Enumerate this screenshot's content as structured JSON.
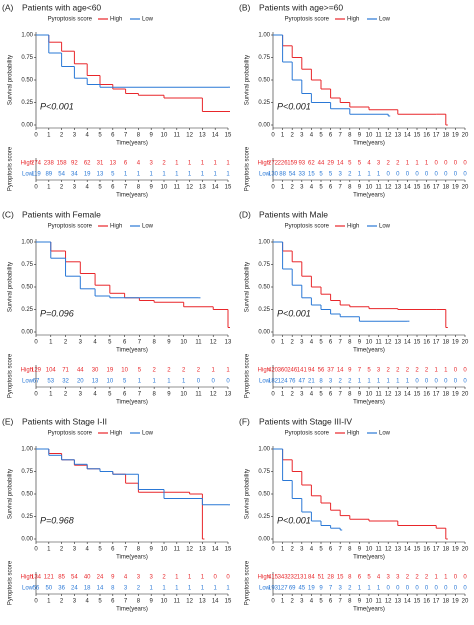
{
  "chart_data": [
    {
      "type": "line",
      "panel_label": "(A)",
      "title": "Patients with age<60",
      "legend_title": "Pyroptosis score",
      "xlabel": "Time(years)",
      "ylabel": "Survival probability",
      "risk_ylabel": "Pyroptosis score",
      "p_text": "P<0.001",
      "xlim": [
        0,
        15
      ],
      "xticks": [
        0,
        1,
        2,
        3,
        4,
        5,
        6,
        7,
        8,
        9,
        10,
        11,
        12,
        13,
        14,
        15
      ],
      "ylim": [
        0,
        1
      ],
      "yticks": [
        {
          "value": 0,
          "label": "0.00"
        },
        {
          "value": 0.25,
          "label": "0.25"
        },
        {
          "value": 0.5,
          "label": "0.50"
        },
        {
          "value": 0.75,
          "label": "0.75"
        },
        {
          "value": 1,
          "label": "1.00"
        }
      ],
      "series": [
        {
          "name": "High",
          "color": "#e8262a",
          "x": [
            0,
            1,
            2,
            3,
            4,
            5,
            6,
            7,
            8,
            10,
            13,
            15
          ],
          "values": [
            1,
            0.92,
            0.82,
            0.68,
            0.55,
            0.45,
            0.4,
            0.35,
            0.33,
            0.3,
            0.15,
            0.15
          ],
          "at_risk": [
            274,
            238,
            158,
            92,
            62,
            31,
            13,
            6,
            4,
            3,
            2,
            1,
            1,
            1,
            1,
            1
          ]
        },
        {
          "name": "Low",
          "color": "#2a78d6",
          "x": [
            0,
            1,
            2,
            3,
            4,
            5,
            15
          ],
          "values": [
            1,
            0.8,
            0.65,
            0.52,
            0.45,
            0.42,
            0.42
          ],
          "at_risk": [
            119,
            89,
            54,
            34,
            19,
            13,
            5,
            1,
            1,
            1,
            1,
            1,
            1,
            1,
            1,
            1
          ]
        }
      ]
    },
    {
      "type": "line",
      "panel_label": "(B)",
      "title": "Patients with age>=60",
      "legend_title": "Pyroptosis score",
      "xlabel": "Time(years)",
      "ylabel": "Survival probability",
      "risk_ylabel": "Pyroptosis score",
      "p_text": "P<0.001",
      "xlim": [
        0,
        20
      ],
      "xticks": [
        0,
        1,
        2,
        3,
        4,
        5,
        6,
        7,
        8,
        9,
        10,
        11,
        12,
        13,
        14,
        15,
        16,
        17,
        18,
        19,
        20
      ],
      "ylim": [
        0,
        1
      ],
      "yticks": [
        {
          "value": 0,
          "label": "0.00"
        },
        {
          "value": 0.25,
          "label": "0.25"
        },
        {
          "value": 0.5,
          "label": "0.50"
        },
        {
          "value": 0.75,
          "label": "0.75"
        },
        {
          "value": 1,
          "label": "1.00"
        }
      ],
      "series": [
        {
          "name": "High",
          "color": "#e8262a",
          "x": [
            0,
            1,
            2,
            3,
            4,
            5,
            6,
            7,
            8,
            10,
            13,
            17,
            18
          ],
          "values": [
            1,
            0.88,
            0.75,
            0.62,
            0.5,
            0.4,
            0.3,
            0.25,
            0.2,
            0.17,
            0.12,
            0.12,
            0
          ],
          "at_risk": [
            272,
            226,
            159,
            93,
            62,
            44,
            29,
            14,
            5,
            5,
            4,
            3,
            2,
            2,
            1,
            1,
            1,
            0,
            0,
            0,
            0
          ]
        },
        {
          "name": "Low",
          "color": "#2a78d6",
          "x": [
            0,
            1,
            2,
            3,
            4,
            6,
            8,
            12
          ],
          "values": [
            1,
            0.7,
            0.5,
            0.35,
            0.25,
            0.18,
            0.12,
            0.1
          ],
          "at_risk": [
            130,
            88,
            54,
            33,
            15,
            5,
            5,
            3,
            2,
            1,
            1,
            1,
            0,
            0,
            0,
            0,
            0,
            0,
            0,
            0,
            0
          ]
        }
      ]
    },
    {
      "type": "line",
      "panel_label": "(C)",
      "title": "Patients with Female",
      "legend_title": "Pyroptosis score",
      "xlabel": "Time(years)",
      "ylabel": "Survival probability",
      "risk_ylabel": "Pyroptosis score",
      "p_text": "P=0.096",
      "xlim": [
        0,
        13
      ],
      "xticks": [
        0,
        1,
        2,
        3,
        4,
        5,
        6,
        7,
        8,
        9,
        10,
        11,
        12,
        13
      ],
      "ylim": [
        0,
        1
      ],
      "yticks": [
        {
          "value": 0,
          "label": "0.00"
        },
        {
          "value": 0.25,
          "label": "0.25"
        },
        {
          "value": 0.5,
          "label": "0.50"
        },
        {
          "value": 0.75,
          "label": "0.75"
        },
        {
          "value": 1,
          "label": "1.00"
        }
      ],
      "series": [
        {
          "name": "High",
          "color": "#e8262a",
          "x": [
            0,
            1,
            2,
            3,
            4,
            5,
            6,
            7,
            8,
            10,
            12,
            13
          ],
          "values": [
            1,
            0.9,
            0.78,
            0.65,
            0.52,
            0.43,
            0.38,
            0.35,
            0.33,
            0.28,
            0.25,
            0.05
          ],
          "at_risk": [
            129,
            104,
            71,
            44,
            30,
            19,
            10,
            5,
            2,
            2,
            2,
            2,
            1,
            1
          ]
        },
        {
          "name": "Low",
          "color": "#2a78d6",
          "x": [
            0,
            1,
            2,
            3,
            4,
            5,
            11
          ],
          "values": [
            1,
            0.82,
            0.62,
            0.48,
            0.4,
            0.38,
            0.38
          ],
          "at_risk": [
            67,
            53,
            32,
            20,
            13,
            10,
            5,
            1,
            1,
            1,
            1,
            0,
            0,
            0
          ]
        }
      ]
    },
    {
      "type": "line",
      "panel_label": "(D)",
      "title": "Patients with Male",
      "legend_title": "Pyroptosis score",
      "xlabel": "Time(years)",
      "ylabel": "Survival probability",
      "risk_ylabel": "Pyroptosis score",
      "p_text": "P<0.001",
      "xlim": [
        0,
        20
      ],
      "xticks": [
        0,
        1,
        2,
        3,
        4,
        5,
        6,
        7,
        8,
        9,
        10,
        11,
        12,
        13,
        14,
        15,
        16,
        17,
        18,
        19,
        20
      ],
      "ylim": [
        0,
        1
      ],
      "yticks": [
        {
          "value": 0,
          "label": "0.00"
        },
        {
          "value": 0.25,
          "label": "0.25"
        },
        {
          "value": 0.5,
          "label": "0.50"
        },
        {
          "value": 0.75,
          "label": "0.75"
        },
        {
          "value": 1,
          "label": "1.00"
        }
      ],
      "series": [
        {
          "name": "High",
          "color": "#e8262a",
          "x": [
            0,
            1,
            2,
            3,
            4,
            5,
            6,
            7,
            8,
            10,
            13,
            17,
            18
          ],
          "values": [
            1,
            0.9,
            0.78,
            0.62,
            0.5,
            0.42,
            0.35,
            0.3,
            0.28,
            0.26,
            0.25,
            0.25,
            0.05
          ],
          "at_risk": [
            420,
            360,
            246,
            141,
            94,
            56,
            37,
            14,
            9,
            7,
            5,
            3,
            2,
            2,
            2,
            2,
            2,
            1,
            1,
            0,
            0
          ]
        },
        {
          "name": "Low",
          "color": "#2a78d6",
          "x": [
            0,
            1,
            2,
            3,
            4,
            5,
            6,
            7,
            9,
            14
          ],
          "values": [
            1,
            0.7,
            0.52,
            0.38,
            0.3,
            0.25,
            0.2,
            0.17,
            0.12,
            0.12
          ],
          "at_risk": [
            182,
            124,
            76,
            47,
            21,
            8,
            3,
            2,
            2,
            1,
            1,
            1,
            1,
            1,
            1,
            0,
            0,
            0,
            0,
            0,
            0
          ]
        }
      ]
    },
    {
      "type": "line",
      "panel_label": "(E)",
      "title": "Patients with Stage I-II",
      "legend_title": "Pyroptosis score",
      "xlabel": "Time(years)",
      "ylabel": "Survival probability",
      "risk_ylabel": "Pyroptosis score",
      "p_text": "P=0.968",
      "xlim": [
        0,
        15
      ],
      "xticks": [
        0,
        1,
        2,
        3,
        4,
        5,
        6,
        7,
        8,
        9,
        10,
        11,
        12,
        13,
        14,
        15
      ],
      "ylim": [
        0,
        1
      ],
      "yticks": [
        {
          "value": 0,
          "label": "0.00"
        },
        {
          "value": 0.25,
          "label": "0.25"
        },
        {
          "value": 0.5,
          "label": "0.50"
        },
        {
          "value": 0.75,
          "label": "0.75"
        },
        {
          "value": 1,
          "label": "1.00"
        }
      ],
      "series": [
        {
          "name": "High",
          "color": "#e8262a",
          "x": [
            0,
            1,
            2,
            3,
            4,
            5,
            6,
            7,
            8,
            12,
            13
          ],
          "values": [
            1,
            0.95,
            0.88,
            0.82,
            0.78,
            0.75,
            0.72,
            0.62,
            0.52,
            0.5,
            0
          ],
          "at_risk": [
            134,
            121,
            85,
            54,
            40,
            24,
            9,
            4,
            3,
            3,
            2,
            1,
            1,
            1,
            0,
            0
          ]
        },
        {
          "name": "Low",
          "color": "#2a78d6",
          "x": [
            0,
            1,
            2,
            3,
            4,
            5,
            6,
            8,
            10,
            13,
            15
          ],
          "values": [
            1,
            0.93,
            0.88,
            0.83,
            0.78,
            0.75,
            0.72,
            0.55,
            0.45,
            0.38,
            0.38
          ],
          "at_risk": [
            56,
            50,
            36,
            24,
            18,
            14,
            8,
            3,
            2,
            1,
            1,
            1,
            1,
            1,
            1,
            1
          ]
        }
      ]
    },
    {
      "type": "line",
      "panel_label": "(F)",
      "title": "Patients with Stage III-IV",
      "legend_title": "Pyroptosis score",
      "xlabel": "Time(years)",
      "ylabel": "Survival probability",
      "risk_ylabel": "Pyroptosis score",
      "p_text": "P<0.001",
      "xlim": [
        0,
        20
      ],
      "xticks": [
        0,
        1,
        2,
        3,
        4,
        5,
        6,
        7,
        8,
        9,
        10,
        11,
        12,
        13,
        14,
        15,
        16,
        17,
        18,
        19,
        20
      ],
      "ylim": [
        0,
        1
      ],
      "yticks": [
        {
          "value": 0,
          "label": "0.00"
        },
        {
          "value": 0.25,
          "label": "0.25"
        },
        {
          "value": 0.5,
          "label": "0.50"
        },
        {
          "value": 0.75,
          "label": "0.75"
        },
        {
          "value": 1,
          "label": "1.00"
        }
      ],
      "series": [
        {
          "name": "High",
          "color": "#e8262a",
          "x": [
            0,
            1,
            2,
            3,
            4,
            5,
            6,
            7,
            8,
            10,
            13,
            17,
            18
          ],
          "values": [
            1,
            0.88,
            0.75,
            0.6,
            0.48,
            0.4,
            0.32,
            0.26,
            0.22,
            0.2,
            0.15,
            0.12,
            0
          ],
          "at_risk": [
            415,
            343,
            232,
            131,
            84,
            51,
            28,
            15,
            8,
            6,
            5,
            4,
            3,
            3,
            2,
            2,
            2,
            1,
            1,
            0,
            0
          ]
        },
        {
          "name": "Low",
          "color": "#2a78d6",
          "x": [
            0,
            1,
            2,
            3,
            4,
            5,
            6,
            7
          ],
          "values": [
            1,
            0.65,
            0.45,
            0.3,
            0.2,
            0.15,
            0.12,
            0.1
          ],
          "at_risk": [
            193,
            127,
            69,
            45,
            19,
            9,
            7,
            3,
            2,
            1,
            1,
            1,
            0,
            0,
            0,
            0,
            0,
            0,
            0,
            0,
            0
          ]
        }
      ]
    }
  ]
}
